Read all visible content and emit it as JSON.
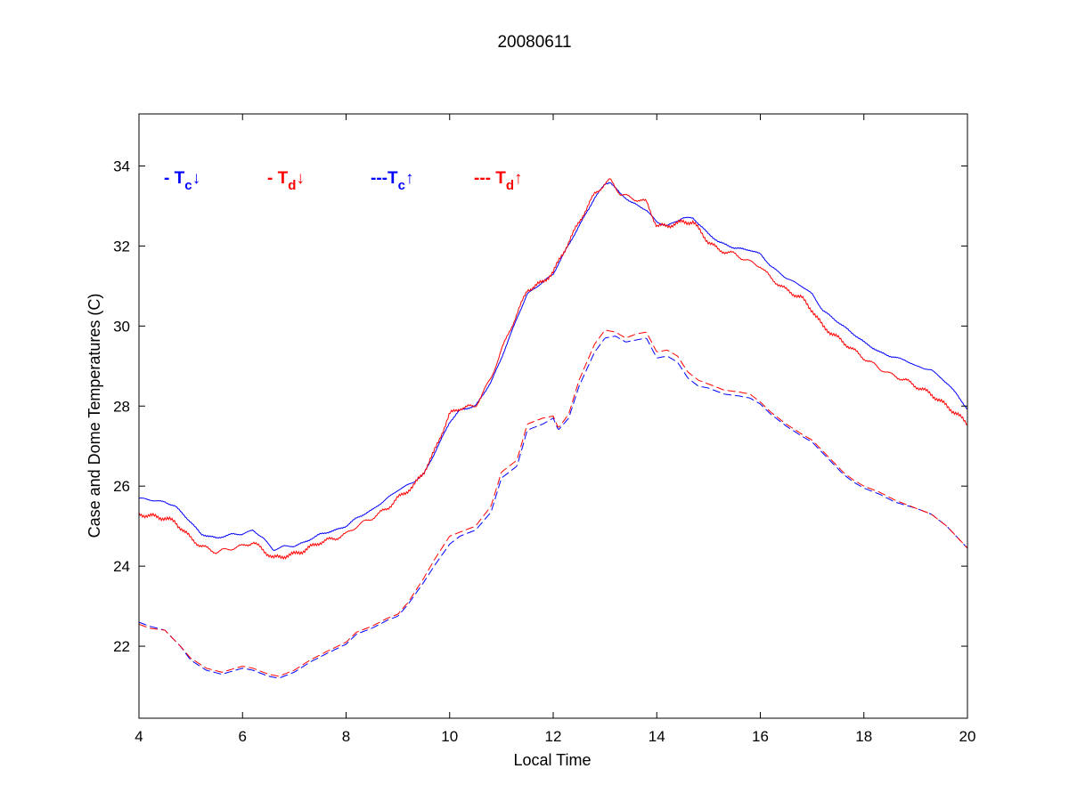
{
  "chart_data": {
    "type": "line",
    "title": "20080611",
    "xlabel": "Local Time",
    "ylabel": "Case and Dome Temperatures (C)",
    "xlim": [
      4,
      20
    ],
    "ylim": [
      20.2,
      35.3
    ],
    "xticks": [
      4,
      6,
      8,
      10,
      12,
      14,
      16,
      18,
      20
    ],
    "yticks": [
      22,
      24,
      26,
      28,
      30,
      32,
      34
    ],
    "grid": false,
    "legend_placement": "top-left, inside plot",
    "legend": [
      {
        "dash": "- ",
        "sym": "T",
        "sub": "c",
        "arrow": "↓"
      },
      {
        "dash": "- ",
        "sym": "T",
        "sub": "d",
        "arrow": "↓"
      },
      {
        "dash": "---",
        "sym": "T",
        "sub": "c",
        "arrow": "↑"
      },
      {
        "dash": "--- ",
        "sym": "T",
        "sub": "d",
        "arrow": "↑"
      }
    ],
    "series": [
      {
        "color": "#0000ff",
        "style": "solid",
        "noise": 0.02,
        "x": [
          4.0,
          4.5,
          4.7,
          5.0,
          5.2,
          5.5,
          5.8,
          6.0,
          6.2,
          6.4,
          6.6,
          6.8,
          7.0,
          7.2,
          7.5,
          7.8,
          8.0,
          8.2,
          8.5,
          8.8,
          9.0,
          9.3,
          9.5,
          9.7,
          10.0,
          10.2,
          10.5,
          10.8,
          11.0,
          11.3,
          11.5,
          11.8,
          12.0,
          12.2,
          12.5,
          12.8,
          13.0,
          13.1,
          13.3,
          13.5,
          13.8,
          14.0,
          14.2,
          14.5,
          14.7,
          15.0,
          15.2,
          15.5,
          15.8,
          16.0,
          16.2,
          16.5,
          16.8,
          17.0,
          17.2,
          17.5,
          17.8,
          18.0,
          18.3,
          18.5,
          18.8,
          19.0,
          19.3,
          19.5,
          19.8,
          20.0
        ],
        "y": [
          25.7,
          25.6,
          25.5,
          25.1,
          24.8,
          24.7,
          24.8,
          24.8,
          24.9,
          24.7,
          24.4,
          24.5,
          24.5,
          24.6,
          24.8,
          24.9,
          25.0,
          25.2,
          25.4,
          25.7,
          25.9,
          26.1,
          26.3,
          26.8,
          27.6,
          27.9,
          28.0,
          28.6,
          29.2,
          30.2,
          30.8,
          31.1,
          31.3,
          31.8,
          32.5,
          33.2,
          33.55,
          33.6,
          33.3,
          33.1,
          32.9,
          32.6,
          32.5,
          32.7,
          32.7,
          32.3,
          32.1,
          31.95,
          31.9,
          31.8,
          31.5,
          31.2,
          31.0,
          30.8,
          30.4,
          30.1,
          29.8,
          29.6,
          29.35,
          29.25,
          29.15,
          29.0,
          28.9,
          28.7,
          28.3,
          27.9
        ]
      },
      {
        "color": "#ff0000",
        "style": "solid",
        "noise": 0.06,
        "x": [
          4.0,
          4.5,
          4.7,
          5.0,
          5.2,
          5.5,
          5.8,
          6.0,
          6.2,
          6.4,
          6.6,
          6.8,
          7.0,
          7.2,
          7.5,
          7.8,
          8.0,
          8.2,
          8.5,
          8.8,
          9.0,
          9.3,
          9.5,
          9.7,
          10.0,
          10.2,
          10.5,
          10.8,
          11.0,
          11.3,
          11.5,
          11.8,
          12.0,
          12.2,
          12.5,
          12.8,
          13.0,
          13.1,
          13.3,
          13.5,
          13.8,
          14.0,
          14.2,
          14.5,
          14.7,
          15.0,
          15.2,
          15.5,
          15.8,
          16.0,
          16.2,
          16.5,
          16.8,
          17.0,
          17.2,
          17.5,
          17.8,
          18.0,
          18.3,
          18.5,
          18.8,
          19.0,
          19.3,
          19.5,
          19.8,
          20.0
        ],
        "y": [
          25.3,
          25.2,
          25.1,
          24.7,
          24.5,
          24.35,
          24.45,
          24.5,
          24.6,
          24.4,
          24.2,
          24.25,
          24.3,
          24.4,
          24.6,
          24.7,
          24.8,
          25.0,
          25.2,
          25.45,
          25.7,
          26.0,
          26.35,
          26.85,
          27.8,
          27.95,
          28.0,
          28.7,
          29.4,
          30.3,
          30.9,
          31.1,
          31.35,
          31.85,
          32.6,
          33.3,
          33.55,
          33.65,
          33.3,
          33.2,
          33.1,
          32.5,
          32.5,
          32.6,
          32.6,
          32.1,
          31.9,
          31.8,
          31.6,
          31.5,
          31.2,
          30.9,
          30.7,
          30.4,
          30.0,
          29.7,
          29.4,
          29.2,
          28.95,
          28.8,
          28.65,
          28.5,
          28.3,
          28.1,
          27.8,
          27.55
        ]
      },
      {
        "color": "#0000ff",
        "style": "dashed",
        "noise": 0.0,
        "x": [
          4.0,
          4.2,
          4.5,
          4.8,
          5.0,
          5.3,
          5.6,
          6.0,
          6.2,
          6.5,
          6.7,
          7.0,
          7.3,
          7.6,
          8.0,
          8.2,
          8.5,
          8.8,
          9.0,
          9.2,
          9.5,
          9.7,
          10.0,
          10.2,
          10.5,
          10.8,
          11.0,
          11.3,
          11.5,
          11.8,
          12.0,
          12.1,
          12.3,
          12.5,
          12.8,
          13.0,
          13.2,
          13.4,
          13.6,
          13.8,
          14.0,
          14.2,
          14.4,
          14.6,
          14.8,
          15.0,
          15.3,
          15.6,
          15.8,
          16.0,
          16.2,
          16.5,
          16.8,
          17.0,
          17.3,
          17.6,
          17.8,
          18.0,
          18.3,
          18.6,
          19.0,
          19.3,
          19.6,
          20.0
        ],
        "y": [
          22.6,
          22.5,
          22.4,
          22.0,
          21.65,
          21.4,
          21.3,
          21.45,
          21.4,
          21.25,
          21.2,
          21.35,
          21.6,
          21.8,
          22.05,
          22.3,
          22.45,
          22.65,
          22.75,
          23.05,
          23.6,
          24.0,
          24.55,
          24.75,
          24.9,
          25.35,
          26.2,
          26.5,
          27.4,
          27.55,
          27.7,
          27.4,
          27.7,
          28.5,
          29.35,
          29.7,
          29.75,
          29.6,
          29.65,
          29.7,
          29.2,
          29.25,
          29.1,
          28.7,
          28.5,
          28.45,
          28.3,
          28.25,
          28.2,
          28.05,
          27.8,
          27.5,
          27.25,
          27.1,
          26.7,
          26.3,
          26.1,
          25.95,
          25.8,
          25.6,
          25.45,
          25.3,
          25.0,
          24.45
        ]
      },
      {
        "color": "#ff0000",
        "style": "dashed",
        "noise": 0.0,
        "x": [
          4.0,
          4.2,
          4.5,
          4.8,
          5.0,
          5.3,
          5.6,
          6.0,
          6.2,
          6.5,
          6.7,
          7.0,
          7.3,
          7.6,
          8.0,
          8.2,
          8.5,
          8.8,
          9.0,
          9.2,
          9.5,
          9.7,
          10.0,
          10.2,
          10.5,
          10.8,
          11.0,
          11.3,
          11.5,
          11.8,
          12.0,
          12.1,
          12.3,
          12.5,
          12.8,
          13.0,
          13.2,
          13.4,
          13.6,
          13.8,
          14.0,
          14.2,
          14.4,
          14.6,
          14.8,
          15.0,
          15.3,
          15.6,
          15.8,
          16.0,
          16.2,
          16.5,
          16.8,
          17.0,
          17.3,
          17.6,
          17.8,
          18.0,
          18.3,
          18.6,
          19.0,
          19.3,
          19.6,
          20.0
        ],
        "y": [
          22.55,
          22.45,
          22.4,
          22.0,
          21.7,
          21.45,
          21.35,
          21.5,
          21.45,
          21.3,
          21.25,
          21.4,
          21.65,
          21.85,
          22.1,
          22.35,
          22.5,
          22.7,
          22.8,
          23.1,
          23.7,
          24.15,
          24.75,
          24.85,
          25.0,
          25.5,
          26.35,
          26.65,
          27.55,
          27.7,
          27.75,
          27.45,
          27.8,
          28.65,
          29.55,
          29.9,
          29.85,
          29.7,
          29.8,
          29.85,
          29.35,
          29.4,
          29.25,
          28.85,
          28.65,
          28.55,
          28.4,
          28.35,
          28.3,
          28.1,
          27.85,
          27.55,
          27.3,
          27.15,
          26.75,
          26.35,
          26.15,
          26.0,
          25.85,
          25.65,
          25.45,
          25.3,
          25.0,
          24.45
        ]
      }
    ]
  }
}
